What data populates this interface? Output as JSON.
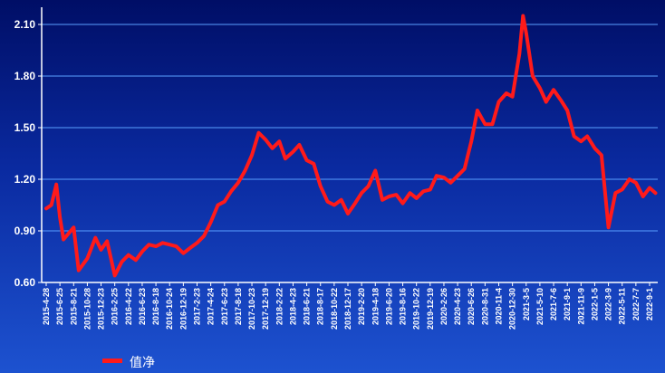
{
  "chart_data": {
    "type": "line",
    "title": "",
    "xlabel": "",
    "ylabel": "",
    "ylim": [
      0.6,
      2.2
    ],
    "yticks": [
      "0.60",
      "0.90",
      "1.20",
      "1.50",
      "1.80",
      "2.10"
    ],
    "grid": true,
    "legend_position": "bottom-left",
    "colors": {
      "line": "#ff1a1a",
      "grid": "#5aa0ff",
      "axis": "#ffffff"
    },
    "x_tick_labels": [
      "2015-4-28",
      "2015-6-25",
      "2015-8-21",
      "2015-10-28",
      "2015-12-23",
      "2016-2-25",
      "2016-4-22",
      "2016-6-23",
      "2016-8-18",
      "2016-10-24",
      "2016-12-19",
      "2017-2-23",
      "2017-4-24",
      "2017-6-23",
      "2017-8-18",
      "2017-10-23",
      "2017-12-19",
      "2018-2-22",
      "2018-4-23",
      "2018-6-21",
      "2018-8-17",
      "2018-10-22",
      "2018-12-17",
      "2019-2-20",
      "2019-4-18",
      "2019-6-20",
      "2019-8-16",
      "2019-10-22",
      "2019-12-19",
      "2020-2-26",
      "2020-4-23",
      "2020-6-26",
      "2020-8-31",
      "2020-11-4",
      "2020-12-30",
      "2021-3-5",
      "2021-5-10",
      "2021-7-6",
      "2021-9-1",
      "2021-11-9",
      "2022-1-5",
      "2022-3-9",
      "2022-5-11",
      "2022-7-7",
      "2022-9-1"
    ],
    "series": [
      {
        "name": "值净",
        "x": [
          "2015-4-28",
          "2015-5-20",
          "2015-6-10",
          "2015-6-25",
          "2015-7-10",
          "2015-8-21",
          "2015-9-15",
          "2015-10-28",
          "2015-11-30",
          "2015-12-23",
          "2016-1-20",
          "2016-2-25",
          "2016-3-25",
          "2016-4-22",
          "2016-5-25",
          "2016-6-23",
          "2016-7-20",
          "2016-8-18",
          "2016-9-20",
          "2016-10-24",
          "2016-11-20",
          "2016-12-19",
          "2017-1-20",
          "2017-2-23",
          "2017-3-25",
          "2017-4-24",
          "2017-5-25",
          "2017-6-23",
          "2017-7-20",
          "2017-8-18",
          "2017-9-20",
          "2017-10-23",
          "2017-11-20",
          "2017-12-19",
          "2018-1-20",
          "2018-2-22",
          "2018-3-20",
          "2018-4-23",
          "2018-5-20",
          "2018-6-21",
          "2018-7-20",
          "2018-8-17",
          "2018-9-20",
          "2018-10-22",
          "2018-11-20",
          "2018-12-17",
          "2019-1-20",
          "2019-2-20",
          "2019-3-20",
          "2019-4-18",
          "2019-5-20",
          "2019-6-20",
          "2019-7-20",
          "2019-8-16",
          "2019-9-20",
          "2019-10-22",
          "2019-11-20",
          "2019-12-19",
          "2020-1-20",
          "2020-2-26",
          "2020-3-25",
          "2020-4-23",
          "2020-5-25",
          "2020-6-26",
          "2020-7-25",
          "2020-8-31",
          "2020-10-5",
          "2020-11-4",
          "2020-12-5",
          "2020-12-30",
          "2021-2-1",
          "2021-2-18",
          "2021-3-5",
          "2021-4-5",
          "2021-5-10",
          "2021-6-5",
          "2021-7-6",
          "2021-8-5",
          "2021-9-1",
          "2021-10-5",
          "2021-11-9",
          "2021-12-5",
          "2022-1-5",
          "2022-2-5",
          "2022-3-9",
          "2022-4-10",
          "2022-5-11",
          "2022-6-10",
          "2022-7-7",
          "2022-8-5",
          "2022-9-1",
          "2022-9-25"
        ],
        "values": [
          1.03,
          1.05,
          1.17,
          0.98,
          0.85,
          0.92,
          0.67,
          0.74,
          0.86,
          0.79,
          0.84,
          0.64,
          0.72,
          0.76,
          0.73,
          0.78,
          0.82,
          0.81,
          0.83,
          0.82,
          0.81,
          0.77,
          0.8,
          0.83,
          0.87,
          0.95,
          1.05,
          1.07,
          1.13,
          1.18,
          1.25,
          1.34,
          1.47,
          1.43,
          1.38,
          1.42,
          1.32,
          1.36,
          1.4,
          1.31,
          1.29,
          1.16,
          1.07,
          1.05,
          1.08,
          1.0,
          1.06,
          1.12,
          1.16,
          1.25,
          1.08,
          1.1,
          1.11,
          1.06,
          1.12,
          1.09,
          1.13,
          1.14,
          1.22,
          1.21,
          1.18,
          1.22,
          1.26,
          1.42,
          1.6,
          1.52,
          1.52,
          1.65,
          1.7,
          1.68,
          1.93,
          2.15,
          2.05,
          1.8,
          1.73,
          1.65,
          1.72,
          1.66,
          1.6,
          1.45,
          1.42,
          1.45,
          1.38,
          1.34,
          0.92,
          1.12,
          1.14,
          1.2,
          1.18,
          1.1,
          1.15,
          1.12
        ]
      }
    ]
  }
}
